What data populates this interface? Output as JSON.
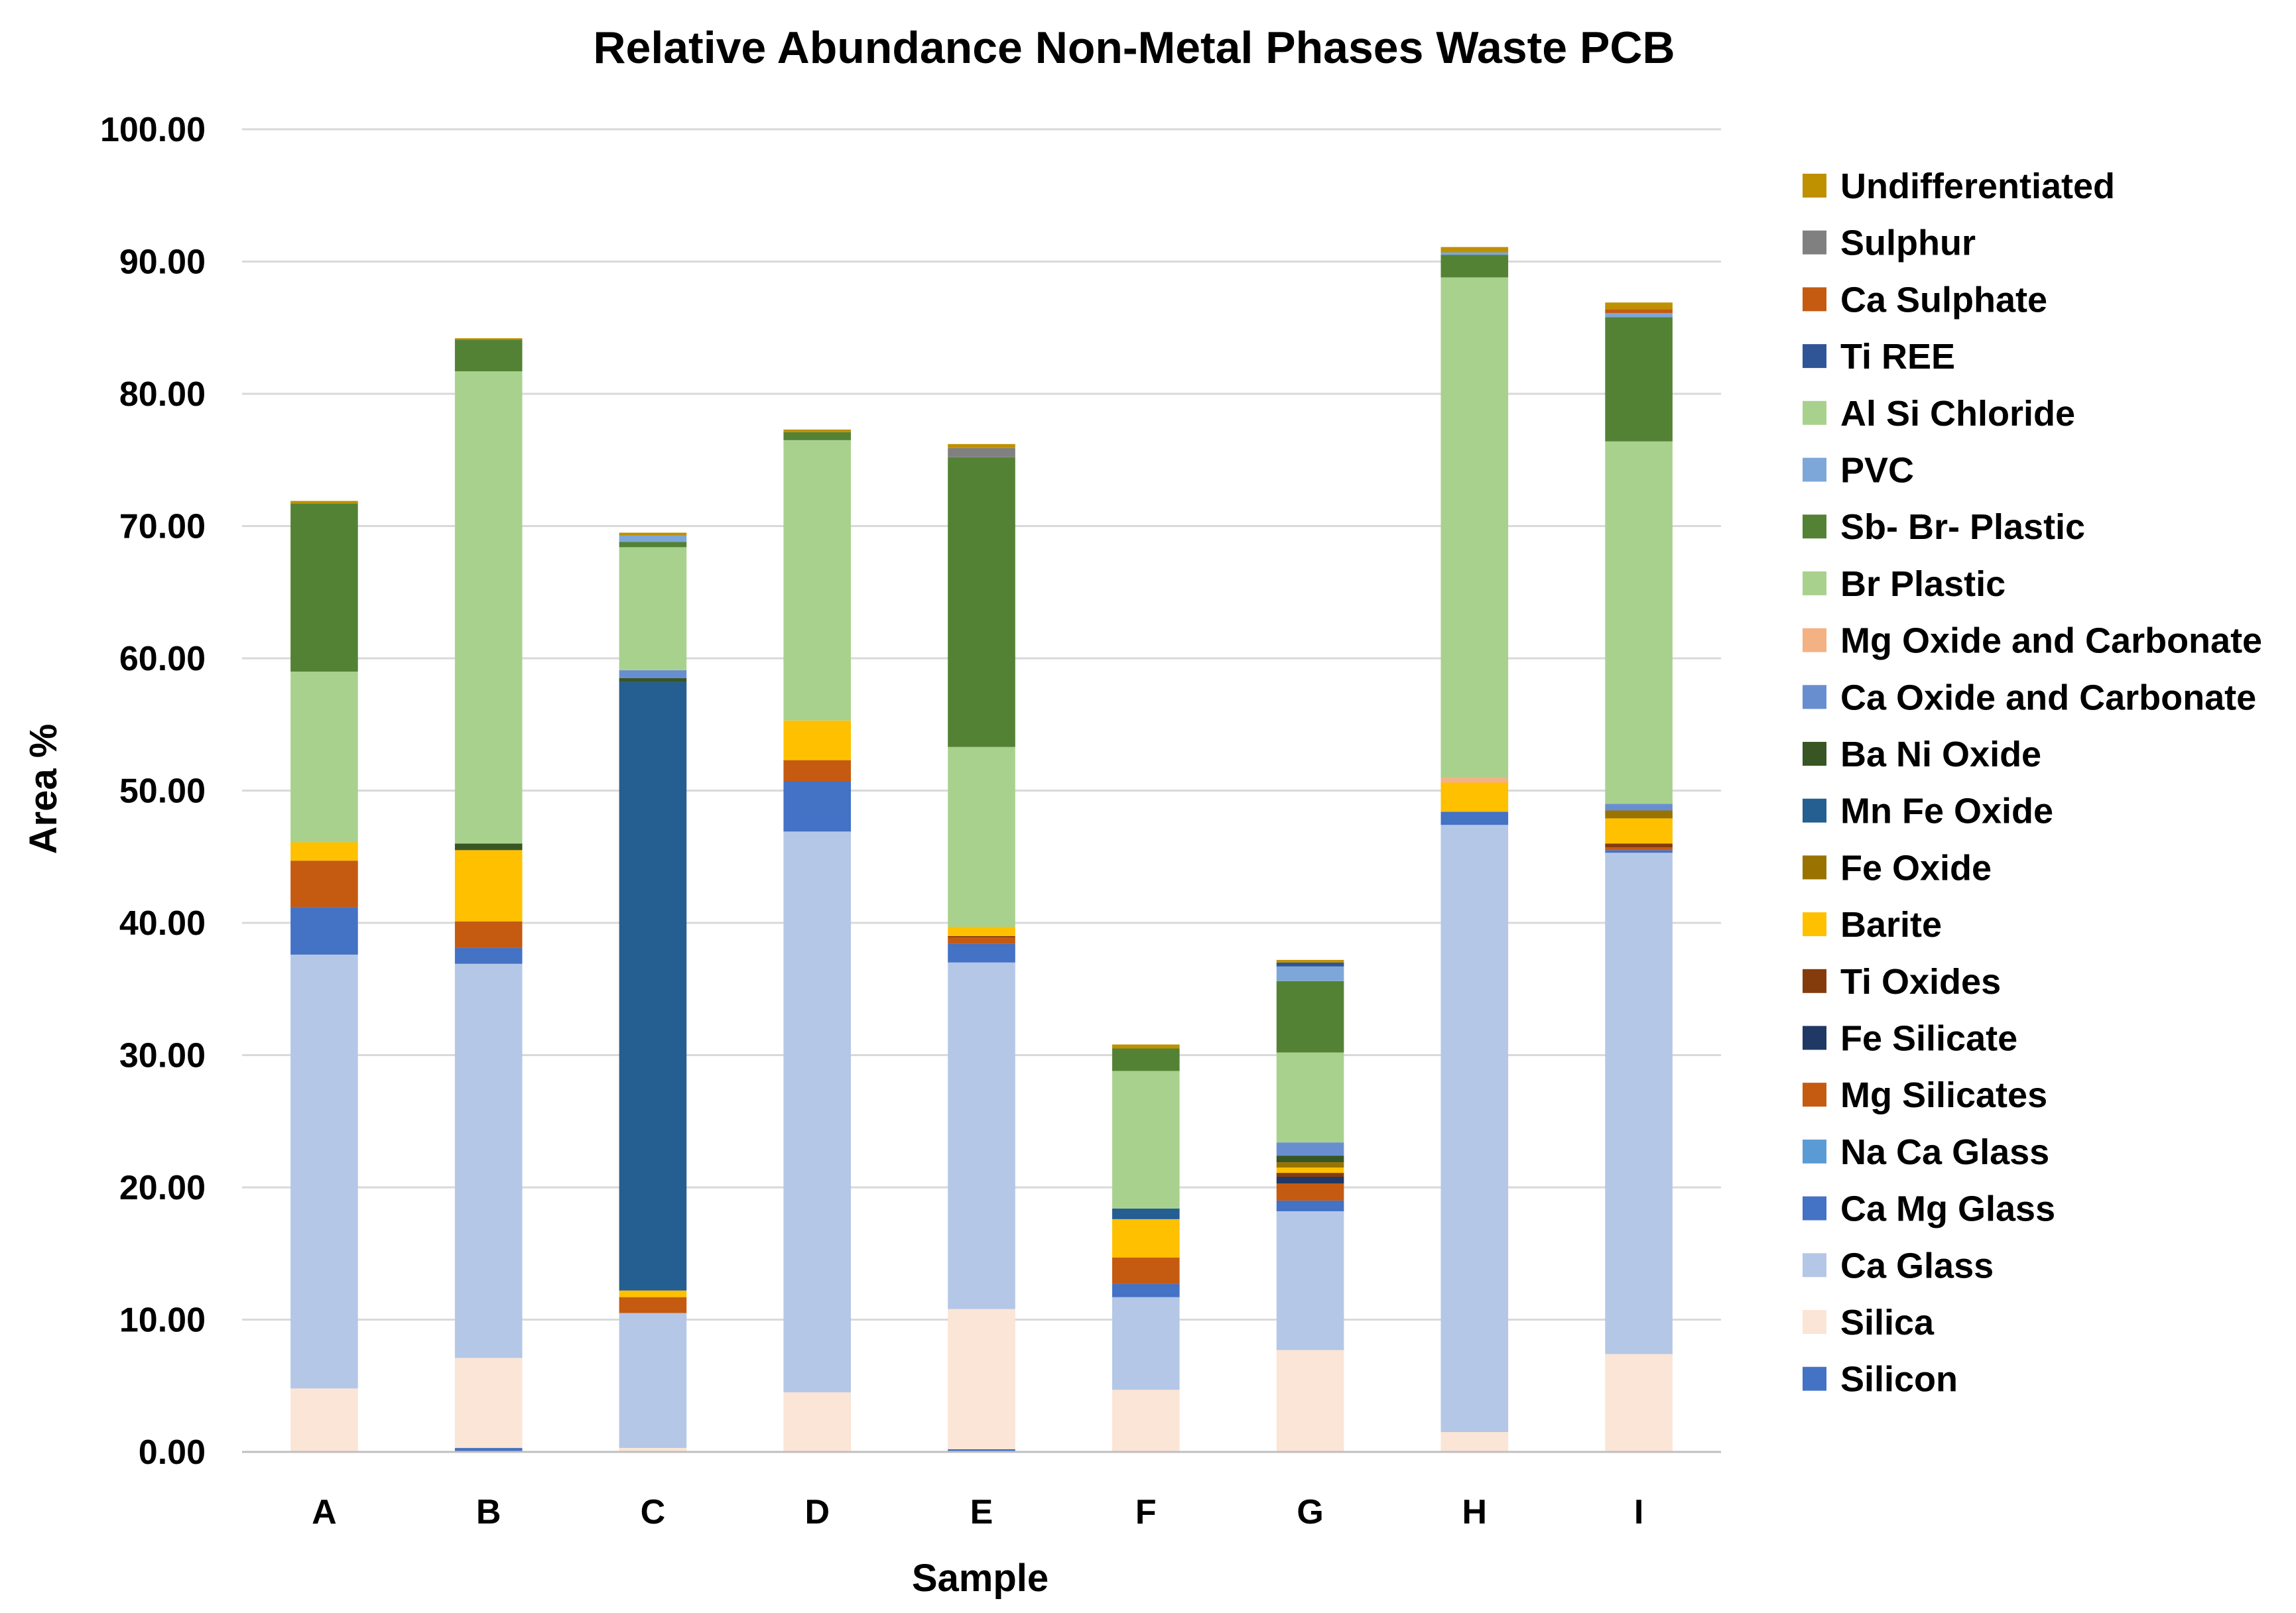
{
  "chart_data": {
    "type": "bar",
    "stacked": true,
    "title": "Relative Abundance Non-Metal Phases Waste PCB",
    "xlabel": "Sample",
    "ylabel": "Area %",
    "ylim": [
      0,
      100
    ],
    "yticks": [
      "0.00",
      "10.00",
      "20.00",
      "30.00",
      "40.00",
      "50.00",
      "60.00",
      "70.00",
      "80.00",
      "90.00",
      "100.00"
    ],
    "grid": true,
    "legend_position": "right",
    "categories": [
      "A",
      "B",
      "C",
      "D",
      "E",
      "F",
      "G",
      "H",
      "I"
    ],
    "series": [
      {
        "name": "Silicon",
        "color": "#4472c4",
        "values": [
          0,
          0.3,
          0,
          0,
          0.2,
          0,
          0,
          0,
          0
        ]
      },
      {
        "name": "Silica",
        "color": "#fbe5d6",
        "values": [
          4.8,
          6.8,
          0.3,
          4.5,
          10.6,
          4.7,
          7.7,
          1.5,
          7.4
        ]
      },
      {
        "name": "Ca Glass",
        "color": "#b4c7e7",
        "values": [
          32.8,
          29.8,
          10.2,
          42.4,
          26.2,
          7.0,
          10.5,
          45.9,
          37.9
        ]
      },
      {
        "name": "Ca Mg Glass",
        "color": "#4472c4",
        "values": [
          3.6,
          1.2,
          0,
          3.8,
          1.4,
          1.0,
          0.8,
          1.0,
          0.2
        ]
      },
      {
        "name": "Na Ca Glass",
        "color": "#5b9bd5",
        "values": [
          0,
          0,
          0,
          0,
          0,
          0,
          0,
          0,
          0
        ]
      },
      {
        "name": "Mg Silicates",
        "color": "#c55a11",
        "values": [
          3.5,
          2.0,
          1.2,
          1.6,
          0.5,
          2.0,
          1.3,
          0,
          0.2
        ]
      },
      {
        "name": "Fe Silicate",
        "color": "#203864",
        "values": [
          0,
          0,
          0,
          0,
          0,
          0,
          0.5,
          0,
          0
        ]
      },
      {
        "name": "Ti Oxides",
        "color": "#843c0c",
        "values": [
          0,
          0,
          0,
          0,
          0.1,
          0,
          0.3,
          0,
          0.3
        ]
      },
      {
        "name": "Barite",
        "color": "#ffc000",
        "values": [
          1.4,
          5.4,
          0.5,
          3.0,
          0.7,
          2.9,
          0.4,
          2.2,
          1.9
        ]
      },
      {
        "name": "Fe Oxide",
        "color": "#997300",
        "values": [
          0,
          0,
          0,
          0,
          0,
          0,
          0.4,
          0,
          0.6
        ]
      },
      {
        "name": "Mn Fe Oxide",
        "color": "#255e91",
        "values": [
          0,
          0,
          46.0,
          0,
          0,
          0.8,
          0,
          0,
          0
        ]
      },
      {
        "name": "Ba Ni Oxide",
        "color": "#375623",
        "values": [
          0,
          0.5,
          0.3,
          0,
          0,
          0,
          0.5,
          0,
          0
        ]
      },
      {
        "name": "Ca Oxide and Carbonate",
        "color": "#698ed0",
        "values": [
          0,
          0,
          0.6,
          0,
          0,
          0,
          1.0,
          0,
          0.5
        ]
      },
      {
        "name": "Mg Oxide and Carbonate",
        "color": "#f4b183",
        "values": [
          0,
          0,
          0,
          0,
          0,
          0,
          0,
          0.4,
          0
        ]
      },
      {
        "name": "Br Plastic",
        "color": "#a9d18e",
        "values": [
          12.9,
          35.7,
          9.3,
          21.2,
          13.6,
          10.4,
          6.8,
          37.8,
          27.4
        ]
      },
      {
        "name": "Sb- Br- Plastic",
        "color": "#548235",
        "values": [
          12.7,
          2.4,
          0.4,
          0.6,
          21.9,
          1.7,
          5.4,
          1.7,
          9.4
        ]
      },
      {
        "name": "PVC",
        "color": "#7da7d9",
        "values": [
          0,
          0,
          0.5,
          0,
          0,
          0,
          1.1,
          0.2,
          0.3
        ]
      },
      {
        "name": "Al Si Chloride",
        "color": "#a9d18e",
        "values": [
          0,
          0,
          0,
          0,
          0,
          0,
          0,
          0,
          0
        ]
      },
      {
        "name": "Ti REE",
        "color": "#2f5597",
        "values": [
          0,
          0,
          0,
          0,
          0,
          0,
          0.3,
          0,
          0
        ]
      },
      {
        "name": "Ca Sulphate",
        "color": "#c55a11",
        "values": [
          0,
          0,
          0,
          0,
          0,
          0,
          0,
          0,
          0.3
        ]
      },
      {
        "name": "Sulphur",
        "color": "#808080",
        "values": [
          0,
          0,
          0,
          0,
          0.7,
          0,
          0,
          0,
          0
        ]
      },
      {
        "name": "Undifferentiated",
        "color": "#bf9000",
        "values": [
          0.2,
          0.1,
          0.2,
          0.2,
          0.3,
          0.3,
          0.2,
          0.4,
          0.5
        ]
      }
    ]
  }
}
